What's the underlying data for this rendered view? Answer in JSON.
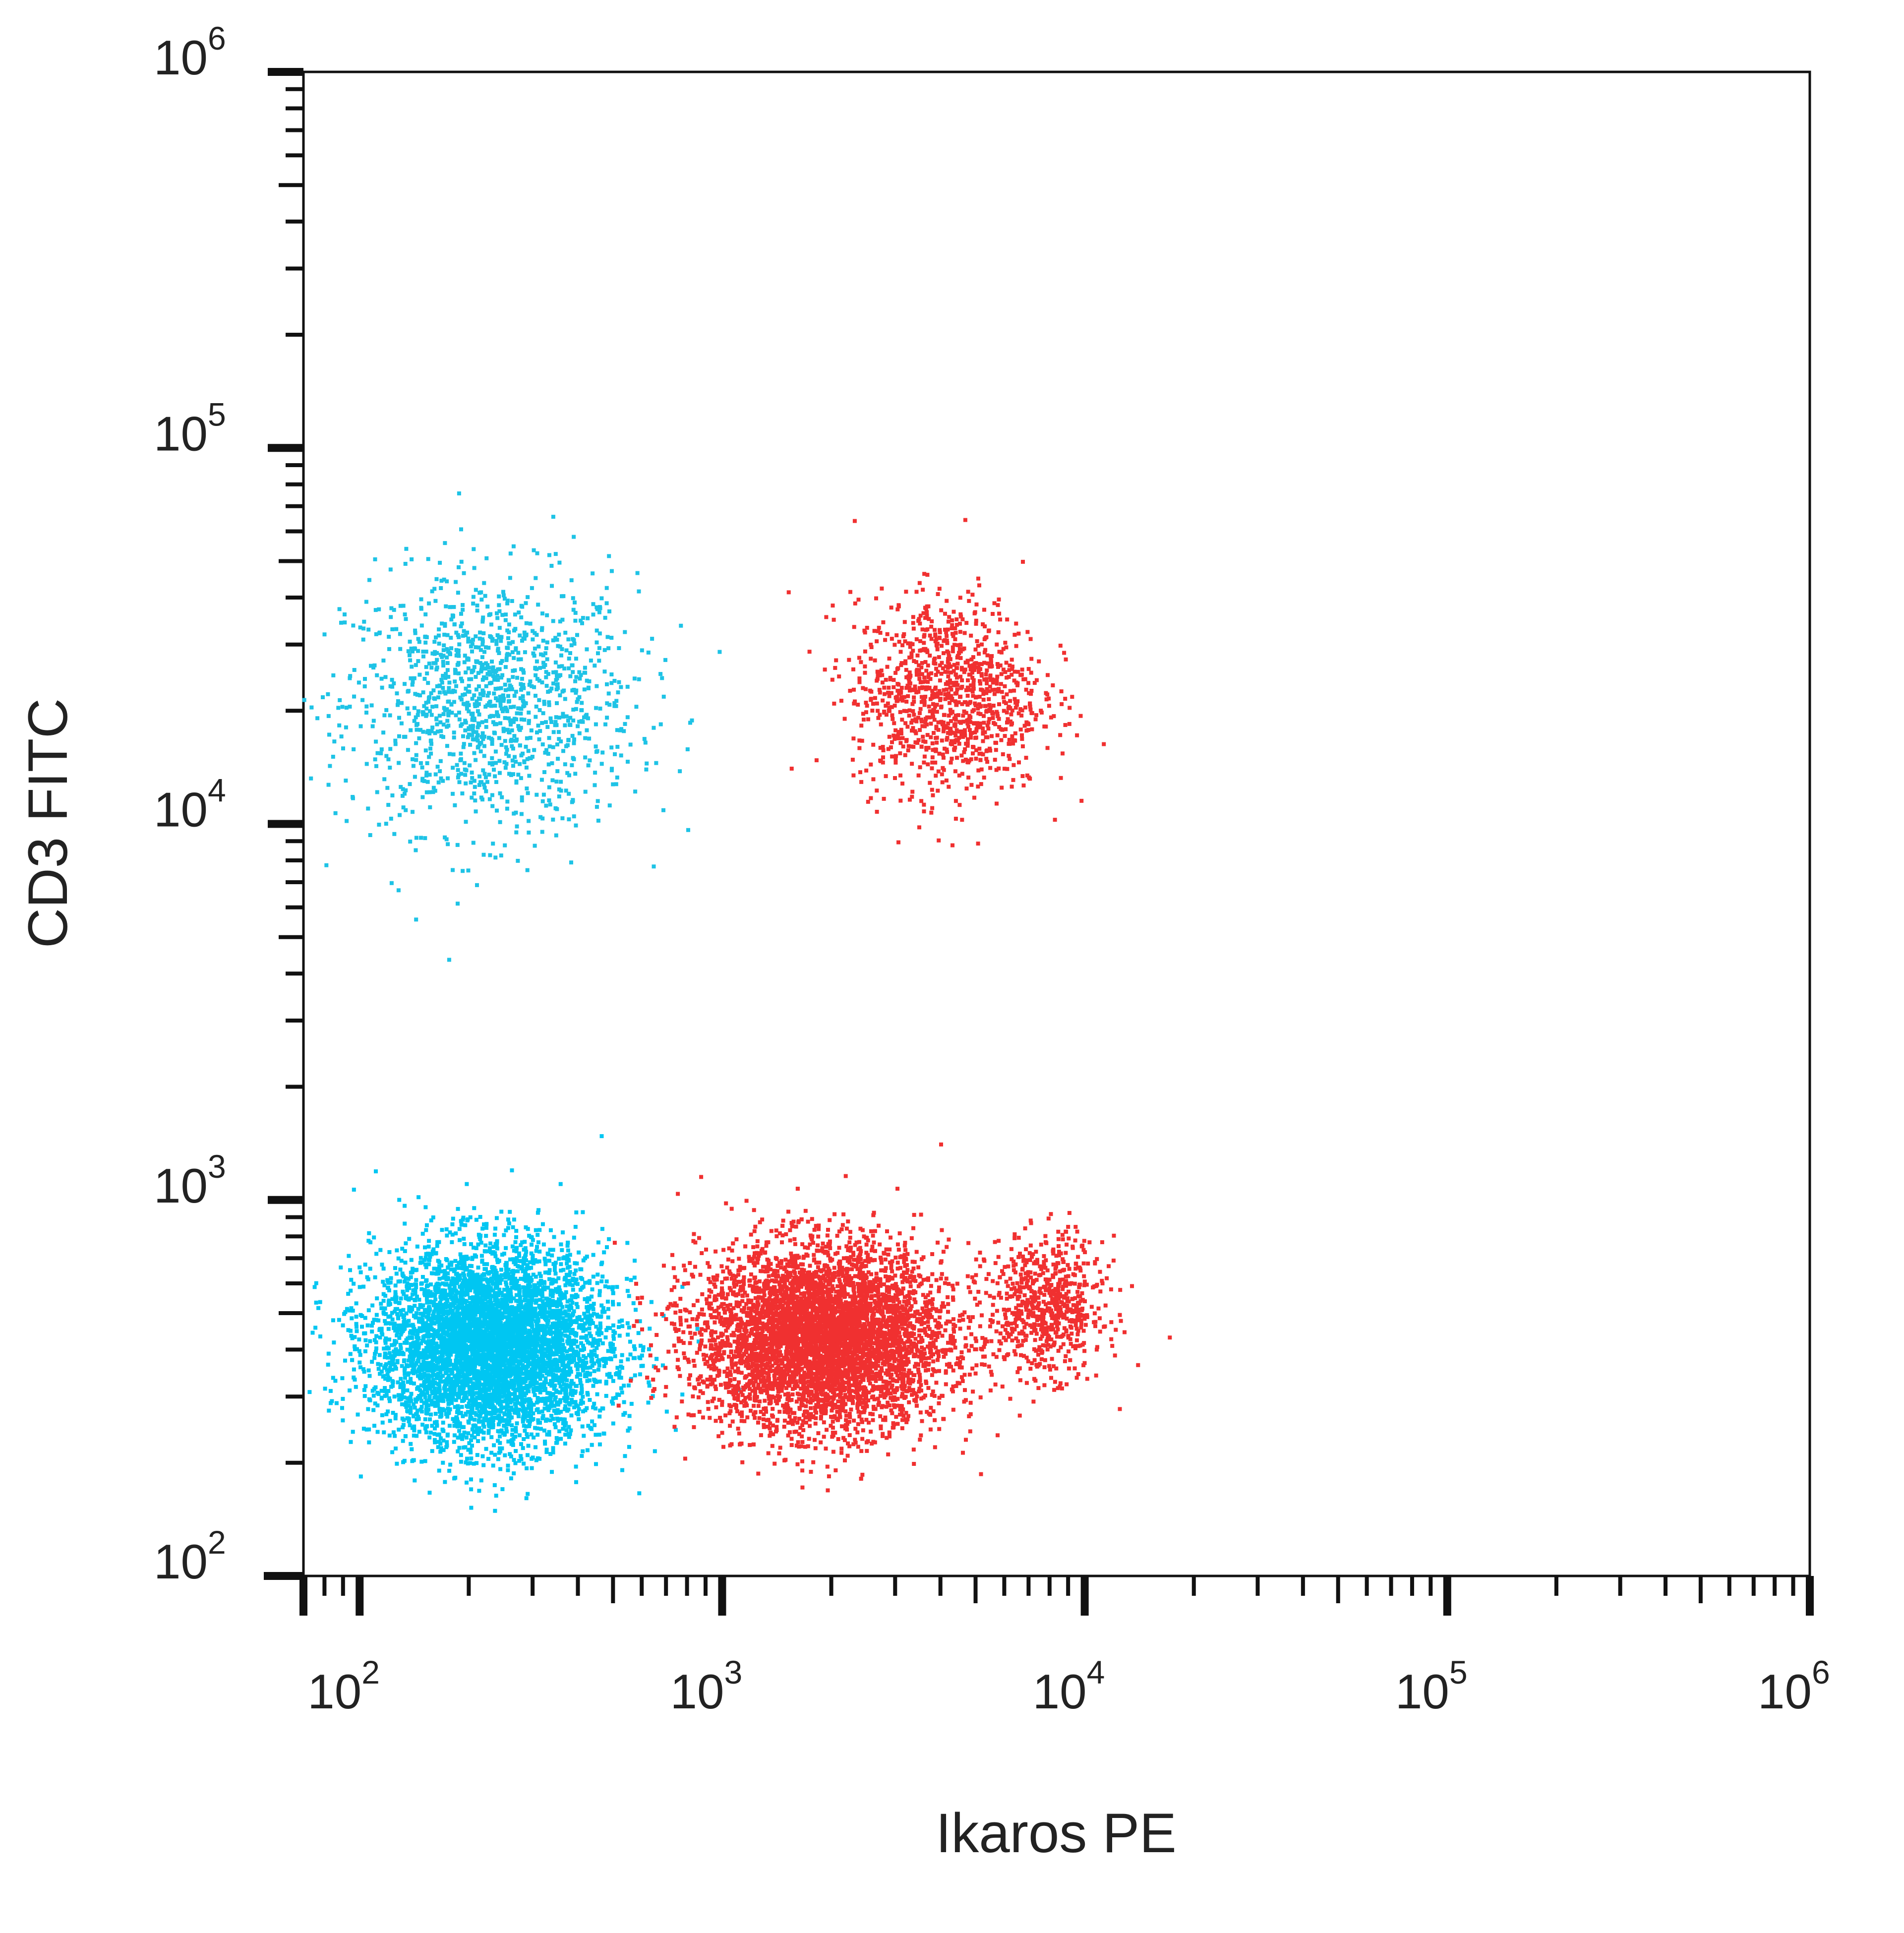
{
  "chart_data": {
    "type": "scatter",
    "title": "",
    "xlabel": "Ikaros PE",
    "ylabel": "CD3 FITC",
    "x_scale": "log",
    "y_scale": "log",
    "xlim": [
      70,
      1000000
    ],
    "ylim": [
      100,
      1000000
    ],
    "x_ticks": [
      {
        "base": "10",
        "exp": "2",
        "value": 100
      },
      {
        "base": "10",
        "exp": "3",
        "value": 1000
      },
      {
        "base": "10",
        "exp": "4",
        "value": 10000
      },
      {
        "base": "10",
        "exp": "5",
        "value": 100000
      },
      {
        "base": "10",
        "exp": "6",
        "value": 1000000
      }
    ],
    "y_ticks": [
      {
        "base": "10",
        "exp": "2",
        "value": 100
      },
      {
        "base": "10",
        "exp": "3",
        "value": 1000
      },
      {
        "base": "10",
        "exp": "4",
        "value": 10000
      },
      {
        "base": "10",
        "exp": "5",
        "value": 100000
      },
      {
        "base": "10",
        "exp": "6",
        "value": 1000000
      }
    ],
    "grid": false,
    "legend": "none",
    "populations": [
      {
        "color": "#1ec3e6",
        "center_x": 230,
        "center_y": 21000,
        "count": 1300
      },
      {
        "color": "#00c6f2",
        "center_x": 230,
        "center_y": 410,
        "count": 5500
      },
      {
        "color": "#f03030",
        "center_x": 4200,
        "center_y": 22000,
        "count": 1100
      },
      {
        "color": "#f03030",
        "center_x": 1900,
        "center_y": 430,
        "count": 5500
      },
      {
        "color": "#f03030",
        "center_x": 7800,
        "center_y": 520,
        "count": 700
      }
    ]
  }
}
